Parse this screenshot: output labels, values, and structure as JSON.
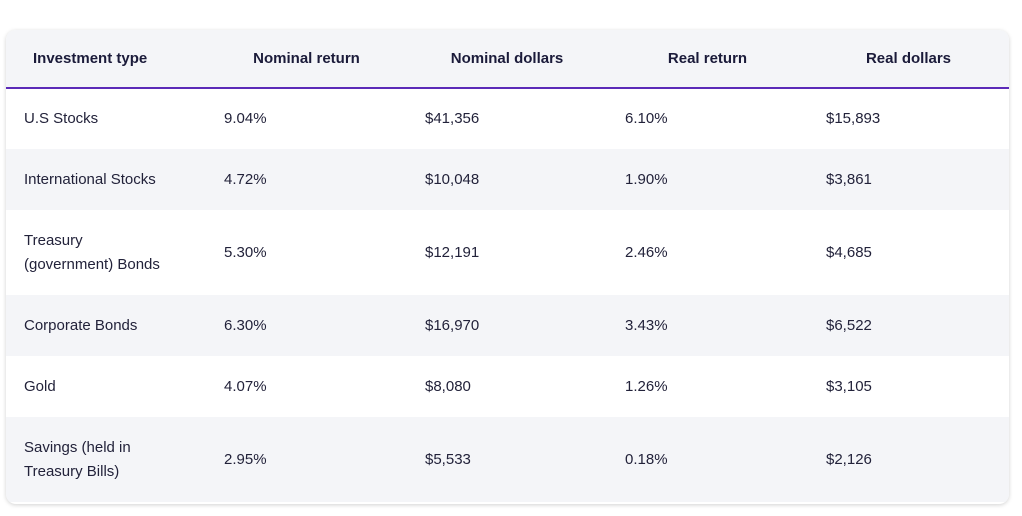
{
  "table": {
    "headers": [
      "Investment type",
      "Nominal return",
      "Nominal dollars",
      "Real return",
      "Real dollars"
    ],
    "rows": [
      [
        "U.S Stocks",
        "9.04%",
        "$41,356",
        "6.10%",
        "$15,893"
      ],
      [
        "International Stocks",
        "4.72%",
        "$10,048",
        "1.90%",
        "$3,861"
      ],
      [
        "Treasury (government) Bonds",
        "5.30%",
        "$12,191",
        "2.46%",
        "$4,685"
      ],
      [
        "Corporate Bonds",
        "6.30%",
        "$16,970",
        "3.43%",
        "$6,522"
      ],
      [
        "Gold",
        "4.07%",
        "$8,080",
        "1.26%",
        "$3,105"
      ],
      [
        "Savings (held in Treasury Bills)",
        "2.95%",
        "$5,533",
        "0.18%",
        "$2,126"
      ]
    ]
  },
  "colors": {
    "header_underline": "#5b2ab8",
    "stripe": "#f4f5f8",
    "text": "#22223a"
  }
}
